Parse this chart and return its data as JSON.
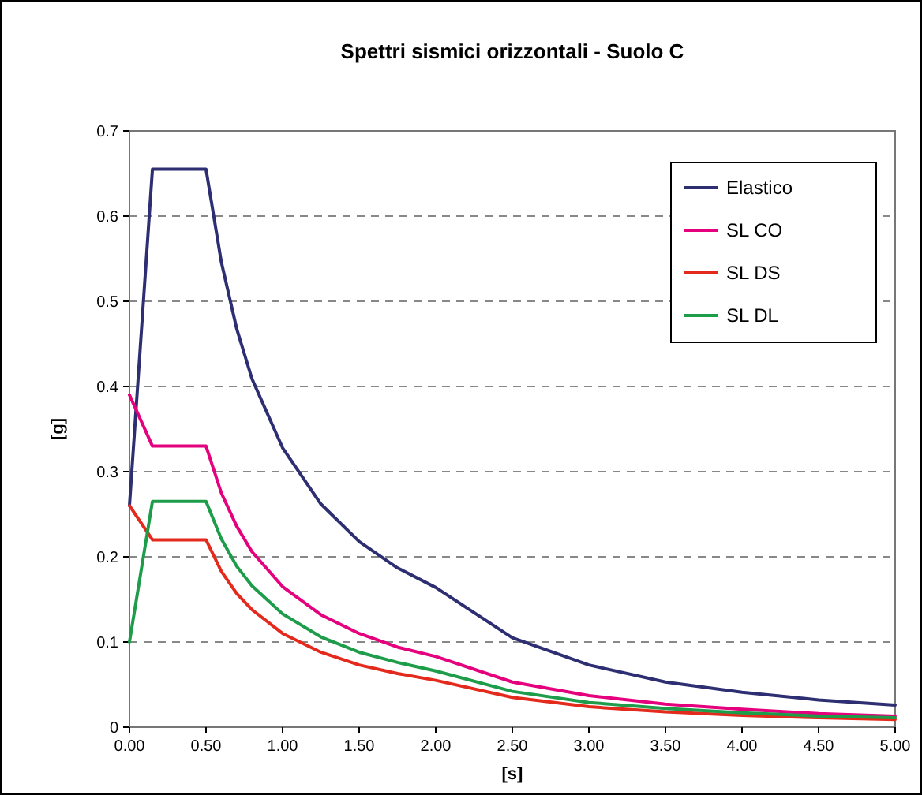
{
  "chart_data": {
    "type": "line",
    "title": "Spettri sismici orizzontali - Suolo C",
    "xlabel": "[s]",
    "ylabel": "[g]",
    "x": [
      0,
      0.15,
      0.5,
      0.6,
      0.7,
      0.8,
      1.0,
      1.25,
      1.5,
      1.75,
      2.0,
      2.5,
      3.0,
      3.5,
      4.0,
      4.5,
      5.0
    ],
    "series": [
      {
        "name": "Elastico",
        "color": "#2e2f72",
        "values": [
          0.26,
          0.655,
          0.655,
          0.546,
          0.468,
          0.409,
          0.328,
          0.262,
          0.218,
          0.187,
          0.164,
          0.105,
          0.073,
          0.053,
          0.041,
          0.032,
          0.026
        ]
      },
      {
        "name": "SL CO",
        "color": "#e5007d",
        "values": [
          0.39,
          0.33,
          0.33,
          0.275,
          0.236,
          0.206,
          0.165,
          0.132,
          0.11,
          0.094,
          0.083,
          0.053,
          0.037,
          0.027,
          0.021,
          0.016,
          0.013
        ]
      },
      {
        "name": "SL DS",
        "color": "#e42a1c",
        "values": [
          0.26,
          0.22,
          0.22,
          0.183,
          0.157,
          0.138,
          0.11,
          0.088,
          0.073,
          0.063,
          0.055,
          0.035,
          0.024,
          0.018,
          0.014,
          0.011,
          0.009
        ]
      },
      {
        "name": "SL DL",
        "color": "#1d9c4a",
        "values": [
          0.1,
          0.265,
          0.265,
          0.221,
          0.189,
          0.166,
          0.133,
          0.106,
          0.088,
          0.076,
          0.066,
          0.042,
          0.029,
          0.022,
          0.017,
          0.013,
          0.011
        ]
      }
    ],
    "xlim": [
      0,
      5
    ],
    "xticks": [
      {
        "value": 0,
        "label": "0.00"
      },
      {
        "value": 0.5,
        "label": "0.50"
      },
      {
        "value": 1,
        "label": "1.00"
      },
      {
        "value": 1.5,
        "label": "1.50"
      },
      {
        "value": 2,
        "label": "2.00"
      },
      {
        "value": 2.5,
        "label": "2.50"
      },
      {
        "value": 3,
        "label": "3.00"
      },
      {
        "value": 3.5,
        "label": "3.50"
      },
      {
        "value": 4,
        "label": "4.00"
      },
      {
        "value": 4.5,
        "label": "4.50"
      },
      {
        "value": 5,
        "label": "5.00"
      }
    ],
    "ylim": [
      0,
      0.7
    ],
    "yticks": [
      0,
      0.1,
      0.2,
      0.3,
      0.4,
      0.5,
      0.6,
      0.7
    ],
    "grid": "y",
    "legend": "top right",
    "marker": "none",
    "line_style": "solid"
  }
}
